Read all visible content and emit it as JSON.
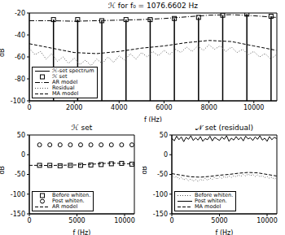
{
  "chart_data": [
    {
      "type": "line",
      "title": "ℋ for f₀ = 1076.6602 Hz",
      "x_label": "f (Hz)",
      "y_label": "dB",
      "xlim": [
        0,
        11025
      ],
      "xticks": [
        0,
        2000,
        4000,
        6000,
        8000,
        10000
      ],
      "ylim": [
        -100,
        -20
      ],
      "yticks": [
        -100,
        -80,
        -60,
        -40,
        -20
      ],
      "legend": "lower left",
      "series": [
        {
          "name": "ℋ-set spectrum",
          "type": "stem",
          "color": "#000000",
          "line_style": "solid",
          "x": [
            1076.66,
            2153.32,
            3229.98,
            4306.64,
            5383.3,
            6459.96,
            7536.62,
            8613.28,
            9689.94,
            10766.6
          ],
          "values": [
            -26,
            -26,
            -27,
            -26,
            -26,
            -25,
            -24,
            -22,
            -21,
            -23
          ]
        },
        {
          "name": "ℋ set",
          "type": "scatter",
          "color": "#000000",
          "marker": "square",
          "x": [
            1076.66,
            2153.32,
            3229.98,
            4306.64,
            5383.3,
            6459.96,
            7536.62,
            8613.28,
            9689.94,
            10766.6
          ],
          "values": [
            -26,
            -26,
            -27,
            -26,
            -26,
            -25,
            -24,
            -22,
            -21,
            -23
          ]
        },
        {
          "name": "AR model",
          "type": "line",
          "color": "#000000",
          "line_style": "dash_dot",
          "x": [
            0,
            1000,
            2000,
            3000,
            4000,
            5000,
            6000,
            7000,
            8000,
            9000,
            10000,
            11000
          ],
          "values": [
            -27,
            -27,
            -27.5,
            -27,
            -26.5,
            -26,
            -25,
            -23.5,
            -22,
            -21.5,
            -22.5,
            -24
          ]
        },
        {
          "name": "Residual",
          "type": "line",
          "color": "#555555",
          "line_style": "dotted",
          "x": [
            0,
            250,
            500,
            750,
            1000,
            1250,
            1500,
            1750,
            2000,
            2250,
            2500,
            2750,
            3000,
            3250,
            3500,
            3750,
            4000,
            4250,
            4500,
            4750,
            5000,
            5250,
            5500,
            5750,
            6000,
            6250,
            6500,
            6750,
            7000,
            7250,
            7500,
            7750,
            8000,
            8250,
            8500,
            8750,
            9000,
            9250,
            9500,
            9750,
            10000,
            10250,
            10500,
            10750,
            11000
          ],
          "values": [
            -52,
            -58,
            -55,
            -62,
            -57,
            -64,
            -60,
            -66,
            -61,
            -67,
            -63,
            -68,
            -62,
            -66,
            -60,
            -65,
            -59,
            -63,
            -57,
            -62,
            -56,
            -60,
            -55,
            -59,
            -54,
            -58,
            -53,
            -56,
            -51,
            -55,
            -50,
            -54,
            -49,
            -53,
            -50,
            -55,
            -51,
            -56,
            -53,
            -58,
            -55,
            -60,
            -57,
            -62,
            -58
          ]
        },
        {
          "name": "MA model",
          "type": "line",
          "color": "#000000",
          "line_style": "dashed",
          "x": [
            0,
            1000,
            2000,
            3000,
            4000,
            5000,
            6000,
            7000,
            8000,
            9000,
            10000,
            11000
          ],
          "values": [
            -48,
            -52,
            -56,
            -57,
            -55,
            -52,
            -50,
            -47,
            -45,
            -46,
            -50,
            -54
          ]
        }
      ]
    },
    {
      "type": "line",
      "title": "ℋ set",
      "x_label": "f (Hz)",
      "y_label": "dB",
      "xlim": [
        0,
        11025
      ],
      "xticks": [
        0,
        5000,
        10000
      ],
      "ylim": [
        -150,
        50
      ],
      "yticks": [
        -150,
        -100,
        -50,
        0,
        50
      ],
      "legend": "lower left",
      "series": [
        {
          "name": "Before whiten.",
          "type": "scatter",
          "color": "#000000",
          "marker": "square",
          "x": [
            1076.66,
            2153.32,
            3229.98,
            4306.64,
            5383.3,
            6459.96,
            7536.62,
            8613.28,
            9689.94,
            10766.6
          ],
          "values": [
            -27,
            -27,
            -28,
            -27,
            -27,
            -26,
            -25,
            -23,
            -22,
            -24
          ]
        },
        {
          "name": "Post whiten.",
          "type": "scatter",
          "color": "#000000",
          "marker": "circle",
          "x": [
            1076.66,
            2153.32,
            3229.98,
            4306.64,
            5383.3,
            6459.96,
            7536.62,
            8613.28,
            9689.94,
            10766.6
          ],
          "values": [
            25,
            25,
            25,
            25,
            25,
            25,
            25,
            25,
            25,
            25
          ]
        },
        {
          "name": "AR model",
          "type": "line",
          "color": "#000000",
          "line_style": "dashed",
          "x": [
            0,
            1000,
            2000,
            3000,
            4000,
            5000,
            6000,
            7000,
            8000,
            9000,
            10000,
            11000
          ],
          "values": [
            -27,
            -27,
            -27.5,
            -27,
            -26.5,
            -26,
            -25,
            -23.5,
            -22,
            -21.5,
            -22.5,
            -24
          ]
        }
      ]
    },
    {
      "type": "line",
      "title": "𝒩 set (residual)",
      "x_label": "f (Hz)",
      "y_label": "dB",
      "xlim": [
        0,
        11025
      ],
      "xticks": [
        0,
        5000,
        10000
      ],
      "ylim": [
        -150,
        50
      ],
      "yticks": [
        -150,
        -100,
        -50,
        0,
        50
      ],
      "legend": "lower left",
      "series": [
        {
          "name": "Before whiten.",
          "type": "line",
          "color": "#555555",
          "line_style": "dotted",
          "x": [
            0,
            250,
            500,
            750,
            1000,
            1250,
            1500,
            1750,
            2000,
            2250,
            2500,
            2750,
            3000,
            3250,
            3500,
            3750,
            4000,
            4250,
            4500,
            4750,
            5000,
            5250,
            5500,
            5750,
            6000,
            6250,
            6500,
            6750,
            7000,
            7250,
            7500,
            7750,
            8000,
            8250,
            8500,
            8750,
            9000,
            9250,
            9500,
            9750,
            10000,
            10250,
            10500,
            10750,
            11000
          ],
          "values": [
            -52,
            -58,
            -55,
            -62,
            -57,
            -64,
            -60,
            -66,
            -61,
            -67,
            -63,
            -68,
            -62,
            -66,
            -60,
            -65,
            -59,
            -63,
            -57,
            -62,
            -56,
            -60,
            -55,
            -59,
            -54,
            -58,
            -53,
            -56,
            -51,
            -55,
            -50,
            -54,
            -49,
            -53,
            -50,
            -55,
            -51,
            -56,
            -53,
            -58,
            -55,
            -60,
            -57,
            -62,
            -58
          ]
        },
        {
          "name": "Post whiten.",
          "type": "line",
          "color": "#000000",
          "line_style": "solid",
          "x": [
            0,
            250,
            500,
            750,
            1000,
            1250,
            1500,
            1750,
            2000,
            2250,
            2500,
            2750,
            3000,
            3250,
            3500,
            3750,
            4000,
            4250,
            4500,
            4750,
            5000,
            5250,
            5500,
            5750,
            6000,
            6250,
            6500,
            6750,
            7000,
            7250,
            7500,
            7750,
            8000,
            8250,
            8500,
            8750,
            9000,
            9250,
            9500,
            9750,
            10000,
            10250,
            10500,
            10750,
            11000
          ],
          "values": [
            42,
            35,
            47,
            38,
            45,
            33,
            44,
            39,
            48,
            36,
            43,
            37,
            46,
            34,
            41,
            38,
            47,
            35,
            44,
            40,
            36,
            45,
            39,
            48,
            34,
            42,
            37,
            46,
            38,
            44,
            35,
            47,
            40,
            43,
            36,
            45,
            39,
            48,
            37,
            42,
            34,
            46,
            38,
            44,
            41
          ]
        },
        {
          "name": "MA model",
          "type": "line",
          "color": "#000000",
          "line_style": "dashed",
          "x": [
            0,
            1000,
            2000,
            3000,
            4000,
            5000,
            6000,
            7000,
            8000,
            9000,
            10000,
            11000
          ],
          "values": [
            -48,
            -52,
            -56,
            -57,
            -55,
            -52,
            -50,
            -47,
            -45,
            -46,
            -50,
            -54
          ]
        }
      ]
    }
  ]
}
